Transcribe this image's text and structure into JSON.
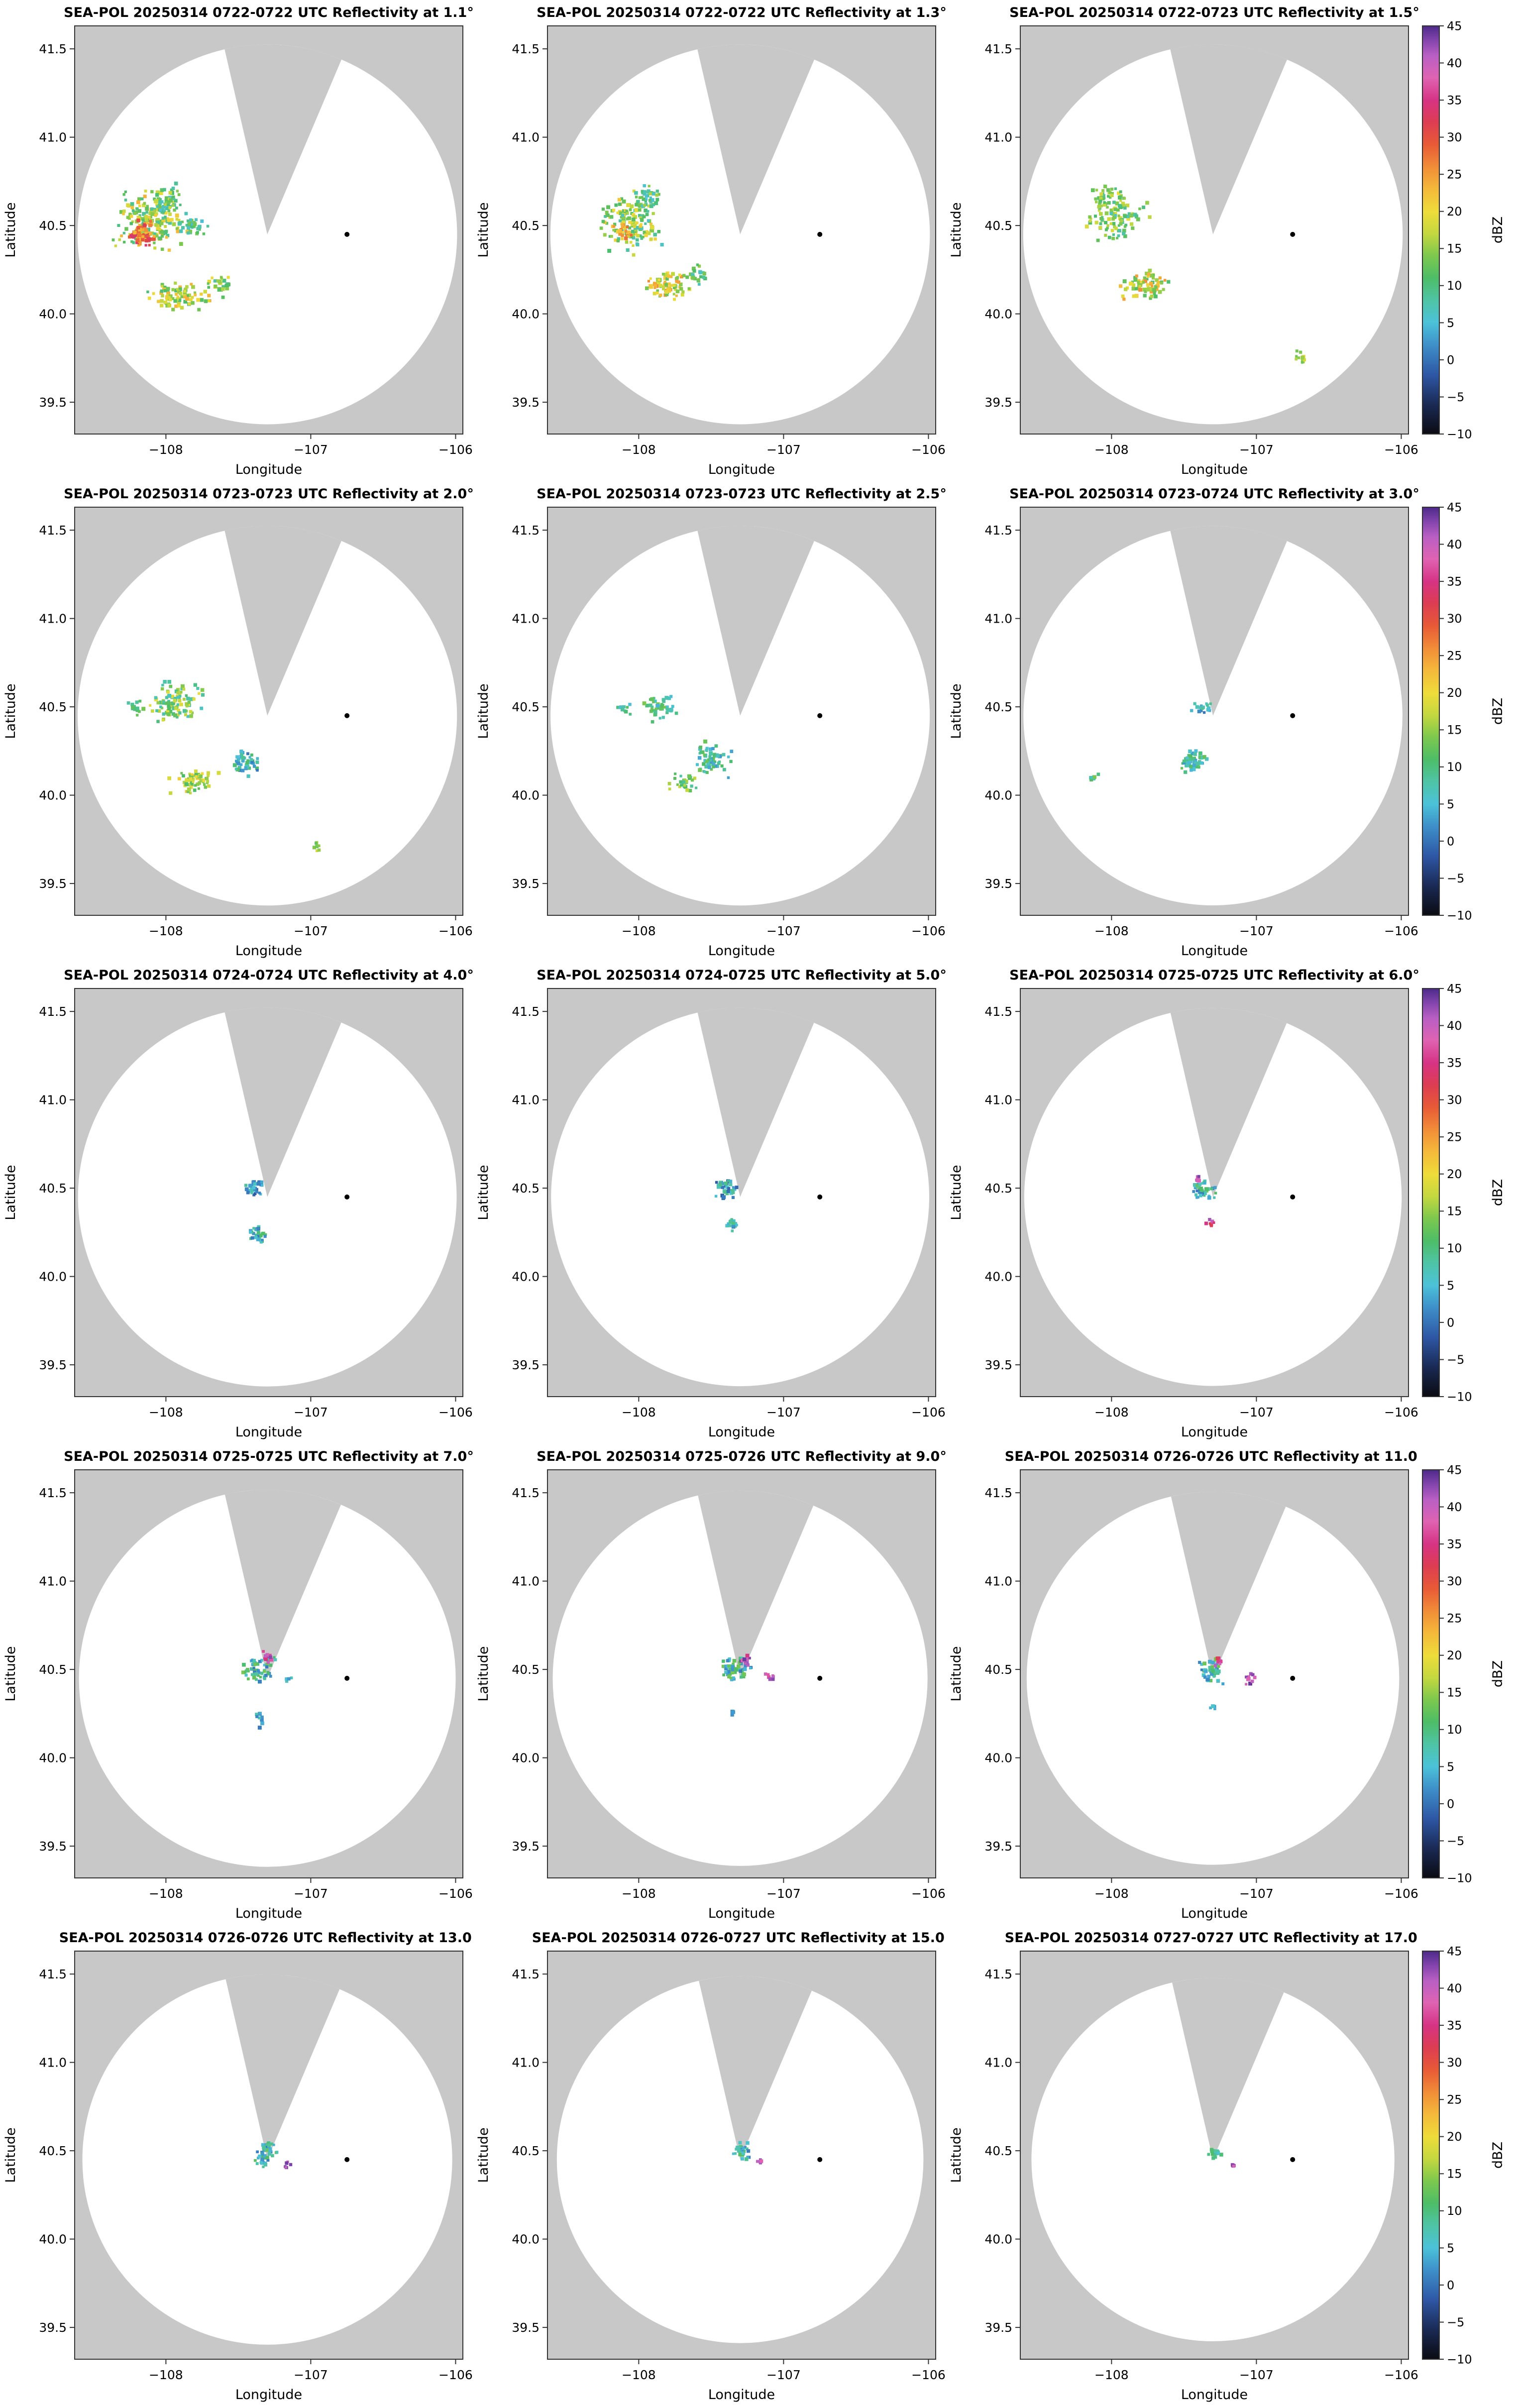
{
  "chart_data": {
    "type": "heatmap",
    "figure_description": "SEA-POL radar PPI reflectivity scans, 5 rows x 3 columns, increasing elevation angle",
    "shared": {
      "xlabel": "Longitude",
      "ylabel": "Latitude",
      "xlim": [
        -108.63,
        -105.95
      ],
      "ylim": [
        39.32,
        41.63
      ],
      "xticks": [
        -108,
        -107,
        -106
      ],
      "xtick_labels": [
        "−108",
        "−107",
        "−106"
      ],
      "yticks": [
        39.5,
        40.0,
        40.5,
        41.0,
        41.5
      ],
      "ytick_labels": [
        "39.5",
        "40.0",
        "40.5",
        "41.0",
        "41.5"
      ],
      "background_color": "#c8c8c8",
      "scan_fill": "#ffffff",
      "frame_color": "#333333",
      "radar": {
        "center_lon": -107.3,
        "center_lat": 40.45,
        "radius_lon_deg": 1.31,
        "radius_lat_deg": 1.075,
        "blocked_sector_azimuth_deg": [
          -13,
          23
        ],
        "reference_elevation_deg": 1.1
      },
      "site_marker": {
        "lon": -106.75,
        "lat": 40.45,
        "color": "#000000"
      },
      "colorbar": {
        "label": "dBZ",
        "min": -10,
        "max": 45,
        "ticks": [
          45,
          40,
          35,
          30,
          25,
          20,
          15,
          10,
          5,
          0,
          -5,
          -10
        ],
        "stops": [
          [
            -10,
            "#0b0b12"
          ],
          [
            -6,
            "#1a2a55"
          ],
          [
            -2,
            "#2e57a5"
          ],
          [
            2,
            "#3e8fc9"
          ],
          [
            5,
            "#4cc2d9"
          ],
          [
            8,
            "#4ec4a6"
          ],
          [
            11,
            "#4dbd67"
          ],
          [
            14,
            "#7cc84e"
          ],
          [
            17,
            "#c4d83f"
          ],
          [
            20,
            "#eedc3a"
          ],
          [
            23,
            "#f4b93a"
          ],
          [
            26,
            "#f18c38"
          ],
          [
            29,
            "#e85a36"
          ],
          [
            32,
            "#dd3d52"
          ],
          [
            35,
            "#d63384"
          ],
          [
            38,
            "#df63b2"
          ],
          [
            41,
            "#b95fc4"
          ],
          [
            43,
            "#8445ad"
          ],
          [
            45,
            "#4c2a8a"
          ]
        ]
      },
      "cluster_format": "lon_center, lat_center, sigma_lon_deg, sigma_lat_deg, point_count, dbz_min, dbz_max"
    },
    "panels": [
      {
        "title": "SEA-POL 20250314 0722-0722 UTC Reflectivity at 1.1°",
        "elevation_deg": 1.1,
        "time_utc": "0722-0722",
        "date": "20250314",
        "echo_clusters": [
          [
            -108.1,
            40.52,
            0.16,
            0.12,
            200,
            8,
            24
          ],
          [
            -108.17,
            40.45,
            0.06,
            0.05,
            70,
            22,
            34
          ],
          [
            -108.0,
            40.64,
            0.09,
            0.06,
            50,
            5,
            18
          ],
          [
            -107.83,
            40.5,
            0.09,
            0.05,
            35,
            4,
            14
          ],
          [
            -107.92,
            40.1,
            0.15,
            0.055,
            90,
            10,
            24
          ],
          [
            -107.63,
            40.17,
            0.07,
            0.05,
            30,
            8,
            20
          ]
        ]
      },
      {
        "title": "SEA-POL 20250314 0722-0722 UTC Reflectivity at 1.3°",
        "elevation_deg": 1.3,
        "time_utc": "0722-0722",
        "date": "20250314",
        "echo_clusters": [
          [
            -108.04,
            40.52,
            0.15,
            0.12,
            170,
            6,
            22
          ],
          [
            -108.1,
            40.46,
            0.05,
            0.04,
            25,
            18,
            28
          ],
          [
            -107.94,
            40.66,
            0.08,
            0.05,
            35,
            5,
            16
          ],
          [
            -107.8,
            40.16,
            0.13,
            0.06,
            85,
            10,
            26
          ],
          [
            -107.58,
            40.22,
            0.05,
            0.04,
            20,
            6,
            16
          ]
        ]
      },
      {
        "title": "SEA-POL 20250314 0722-0723 UTC Reflectivity at 1.5°",
        "elevation_deg": 1.5,
        "time_utc": "0722-0723",
        "date": "20250314",
        "echo_clusters": [
          [
            -107.97,
            40.56,
            0.14,
            0.11,
            110,
            6,
            20
          ],
          [
            -108.07,
            40.66,
            0.06,
            0.04,
            25,
            8,
            18
          ],
          [
            -107.76,
            40.16,
            0.12,
            0.06,
            85,
            10,
            26
          ],
          [
            -106.7,
            39.76,
            0.04,
            0.03,
            10,
            12,
            20
          ]
        ]
      },
      {
        "title": "SEA-POL 20250314 0723-0723 UTC Reflectivity at 2.0°",
        "elevation_deg": 2.0,
        "time_utc": "0723-0723",
        "date": "20250314",
        "echo_clusters": [
          [
            -107.92,
            40.52,
            0.13,
            0.09,
            100,
            6,
            20
          ],
          [
            -108.2,
            40.5,
            0.05,
            0.04,
            14,
            8,
            16
          ],
          [
            -107.8,
            40.08,
            0.12,
            0.055,
            65,
            10,
            22
          ],
          [
            -107.45,
            40.18,
            0.075,
            0.055,
            48,
            0,
            12
          ],
          [
            -106.96,
            39.7,
            0.03,
            0.025,
            8,
            12,
            18
          ]
        ]
      },
      {
        "title": "SEA-POL 20250314 0723-0723 UTC Reflectivity at 2.5°",
        "elevation_deg": 2.5,
        "time_utc": "0723-0723",
        "date": "20250314",
        "echo_clusters": [
          [
            -107.86,
            40.5,
            0.09,
            0.06,
            45,
            4,
            14
          ],
          [
            -108.1,
            40.48,
            0.04,
            0.03,
            10,
            4,
            12
          ],
          [
            -107.5,
            40.2,
            0.085,
            0.065,
            65,
            2,
            14
          ],
          [
            -107.7,
            40.08,
            0.07,
            0.04,
            28,
            8,
            18
          ]
        ]
      },
      {
        "title": "SEA-POL 20250314 0723-0724 UTC Reflectivity at 3.0°",
        "elevation_deg": 3.0,
        "time_utc": "0723-0724",
        "date": "20250314",
        "echo_clusters": [
          [
            -107.38,
            40.5,
            0.05,
            0.035,
            18,
            0,
            10
          ],
          [
            -107.43,
            40.2,
            0.075,
            0.055,
            55,
            2,
            14
          ],
          [
            -108.13,
            40.1,
            0.04,
            0.02,
            8,
            6,
            14
          ]
        ]
      },
      {
        "title": "SEA-POL 20250314 0724-0724 UTC Reflectivity at 4.0°",
        "elevation_deg": 4.0,
        "time_utc": "0724-0724",
        "date": "20250314",
        "echo_clusters": [
          [
            -107.4,
            40.5,
            0.055,
            0.04,
            28,
            -2,
            10
          ],
          [
            -107.36,
            40.24,
            0.045,
            0.04,
            32,
            0,
            12
          ]
        ]
      },
      {
        "title": "SEA-POL 20250314 0724-0725 UTC Reflectivity at 5.0°",
        "elevation_deg": 5.0,
        "time_utc": "0724-0725",
        "date": "20250314",
        "echo_clusters": [
          [
            -107.4,
            40.5,
            0.065,
            0.045,
            42,
            -2,
            10
          ],
          [
            -107.36,
            40.3,
            0.035,
            0.03,
            16,
            0,
            10
          ]
        ]
      },
      {
        "title": "SEA-POL 20250314 0725-0725 UTC Reflectivity at 6.0°",
        "elevation_deg": 6.0,
        "time_utc": "0725-0725",
        "date": "20250314",
        "echo_clusters": [
          [
            -107.37,
            40.5,
            0.065,
            0.045,
            40,
            0,
            14
          ],
          [
            -107.4,
            40.55,
            0.02,
            0.015,
            6,
            34,
            44
          ],
          [
            -107.32,
            40.3,
            0.025,
            0.02,
            8,
            30,
            42
          ]
        ]
      },
      {
        "title": "SEA-POL 20250314 0725-0725 UTC Reflectivity at 7.0°",
        "elevation_deg": 7.0,
        "time_utc": "0725-0725",
        "date": "20250314",
        "echo_clusters": [
          [
            -107.36,
            40.5,
            0.075,
            0.055,
            55,
            0,
            14
          ],
          [
            -107.3,
            40.56,
            0.035,
            0.025,
            12,
            34,
            44
          ],
          [
            -107.36,
            40.22,
            0.025,
            0.035,
            10,
            0,
            8
          ],
          [
            -107.15,
            40.45,
            0.02,
            0.015,
            4,
            2,
            8
          ]
        ]
      },
      {
        "title": "SEA-POL 20250314 0725-0726 UTC Reflectivity at 9.0°",
        "elevation_deg": 9.0,
        "time_utc": "0725-0726",
        "date": "20250314",
        "echo_clusters": [
          [
            -107.33,
            40.5,
            0.075,
            0.055,
            55,
            0,
            14
          ],
          [
            -107.27,
            40.55,
            0.035,
            0.025,
            12,
            34,
            44
          ],
          [
            -107.1,
            40.45,
            0.03,
            0.02,
            8,
            36,
            45
          ],
          [
            -107.35,
            40.26,
            0.02,
            0.02,
            5,
            0,
            8
          ]
        ]
      },
      {
        "title": "SEA-POL 20250314 0726-0726 UTC Reflectivity at 11.0°",
        "elevation_deg": 11.0,
        "time_utc": "0726-0726",
        "date": "20250314",
        "echo_clusters": [
          [
            -107.31,
            40.5,
            0.065,
            0.05,
            45,
            0,
            14
          ],
          [
            -107.26,
            40.55,
            0.03,
            0.02,
            8,
            30,
            42
          ],
          [
            -107.05,
            40.45,
            0.03,
            0.025,
            10,
            36,
            45
          ],
          [
            -107.3,
            40.28,
            0.02,
            0.015,
            4,
            0,
            8
          ]
        ]
      },
      {
        "title": "SEA-POL 20250314 0726-0726 UTC Reflectivity at 13.0°",
        "elevation_deg": 13.0,
        "time_utc": "0726-0726",
        "date": "20250314",
        "echo_clusters": [
          [
            -107.3,
            40.5,
            0.06,
            0.045,
            40,
            0,
            14
          ],
          [
            -107.16,
            40.42,
            0.022,
            0.015,
            6,
            38,
            45
          ],
          [
            -107.34,
            40.42,
            0.03,
            0.02,
            8,
            2,
            10
          ]
        ]
      },
      {
        "title": "SEA-POL 20250314 0726-0727 UTC Reflectivity at 15.0°",
        "elevation_deg": 15.0,
        "time_utc": "0726-0727",
        "date": "20250314",
        "echo_clusters": [
          [
            -107.3,
            40.5,
            0.05,
            0.04,
            28,
            0,
            12
          ],
          [
            -107.16,
            40.44,
            0.02,
            0.013,
            5,
            38,
            45
          ]
        ]
      },
      {
        "title": "SEA-POL 20250314 0727-0727 UTC Reflectivity at 17.0°",
        "elevation_deg": 17.0,
        "time_utc": "0727-0727",
        "date": "20250314",
        "echo_clusters": [
          [
            -107.28,
            40.49,
            0.042,
            0.03,
            18,
            0,
            12
          ],
          [
            -107.15,
            40.42,
            0.026,
            0.012,
            6,
            38,
            45
          ]
        ]
      }
    ]
  }
}
